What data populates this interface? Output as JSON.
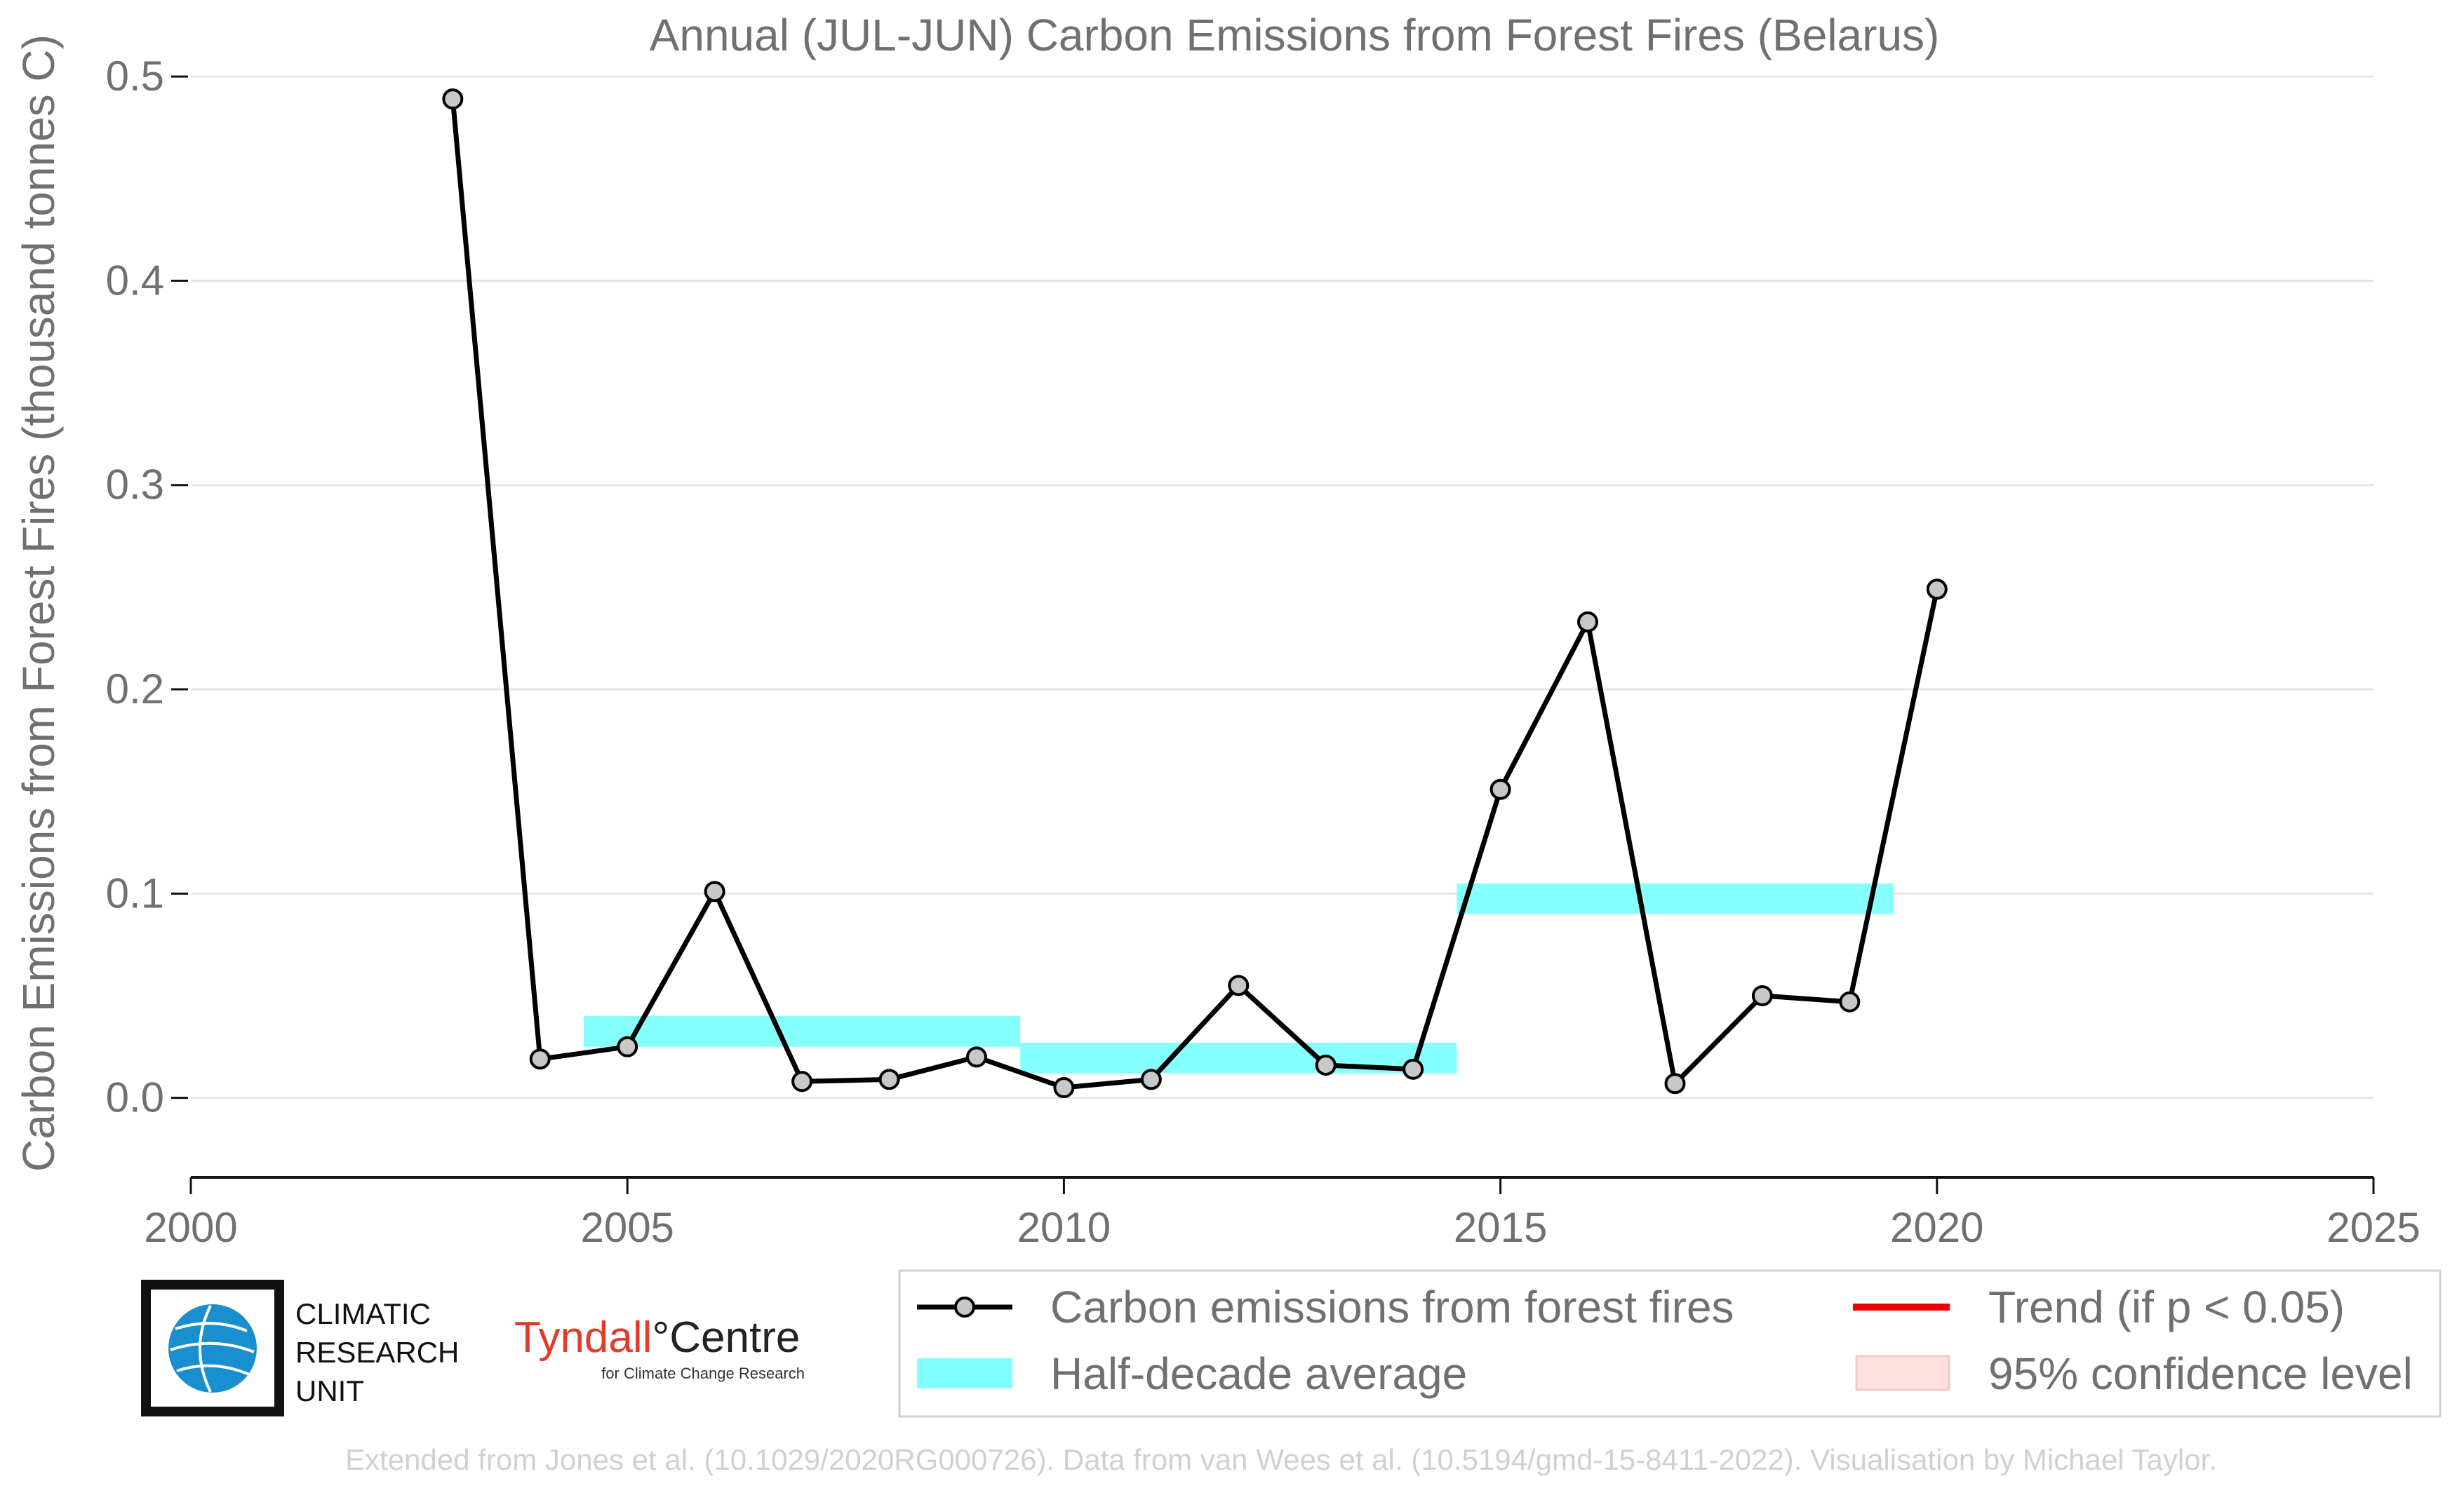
{
  "chart_data": {
    "type": "line",
    "title": "Annual (JUL-JUN) Carbon Emissions from Forest Fires (Belarus)",
    "xlabel": "",
    "ylabel": "Carbon Emissions from Forest Fires (thousand tonnes C)",
    "xlim": [
      2000,
      2025
    ],
    "ylim": [
      -0.03,
      0.51
    ],
    "x_ticks": [
      2000,
      2005,
      2010,
      2015,
      2020,
      2025
    ],
    "y_ticks": [
      0.0,
      0.1,
      0.2,
      0.3,
      0.4,
      0.5
    ],
    "y_tick_labels": [
      "0.0",
      "0.1",
      "0.2",
      "0.3",
      "0.4",
      "0.5"
    ],
    "grid": "horizontal",
    "series": [
      {
        "name": "Carbon emissions from forest fires",
        "color": "#000000",
        "marker_color": "#c8c8c8",
        "x": [
          2003,
          2004,
          2005,
          2006,
          2007,
          2008,
          2009,
          2010,
          2011,
          2012,
          2013,
          2014,
          2015,
          2016,
          2017,
          2018,
          2019,
          2020
        ],
        "y": [
          0.489,
          0.019,
          0.025,
          0.101,
          0.008,
          0.009,
          0.02,
          0.005,
          0.009,
          0.055,
          0.016,
          0.014,
          0.151,
          0.233,
          0.007,
          0.05,
          0.047,
          0.249
        ]
      }
    ],
    "half_decade_average": {
      "name": "Half-decade average",
      "color": "#7fffff",
      "bands": [
        {
          "x_start": 2004.5,
          "x_end": 2009.5,
          "y_low": 0.025,
          "y_high": 0.04
        },
        {
          "x_start": 2009.5,
          "x_end": 2014.5,
          "y_low": 0.012,
          "y_high": 0.027
        },
        {
          "x_start": 2014.5,
          "x_end": 2019.5,
          "y_low": 0.09,
          "y_high": 0.105
        }
      ]
    },
    "legend": {
      "placement": "bottom-right",
      "entries": [
        {
          "label": "Carbon emissions from forest fires",
          "kind": "line-marker",
          "color": "#000000"
        },
        {
          "label": "Trend (if p < 0.05)",
          "kind": "line",
          "color": "#ee0000"
        },
        {
          "label": "Half-decade average",
          "kind": "band",
          "color": "#7fffff"
        },
        {
          "label": "95% confidence level",
          "kind": "band",
          "color": "#ffe0e0"
        }
      ]
    }
  },
  "logos": {
    "cru": {
      "line1": "CLIMATIC",
      "line2": "RESEARCH",
      "line3": "UNIT",
      "icon": "globe-icon"
    },
    "tyndall": {
      "name_a": "Tyndall",
      "degree": "°",
      "name_b": "Centre",
      "subtitle": "for Climate Change Research"
    }
  },
  "credit": "Extended from Jones et al. (10.1029/2020RG000726). Data from van Wees et al. (10.5194/gmd-15-8411-2022). Visualisation by Michael Taylor."
}
